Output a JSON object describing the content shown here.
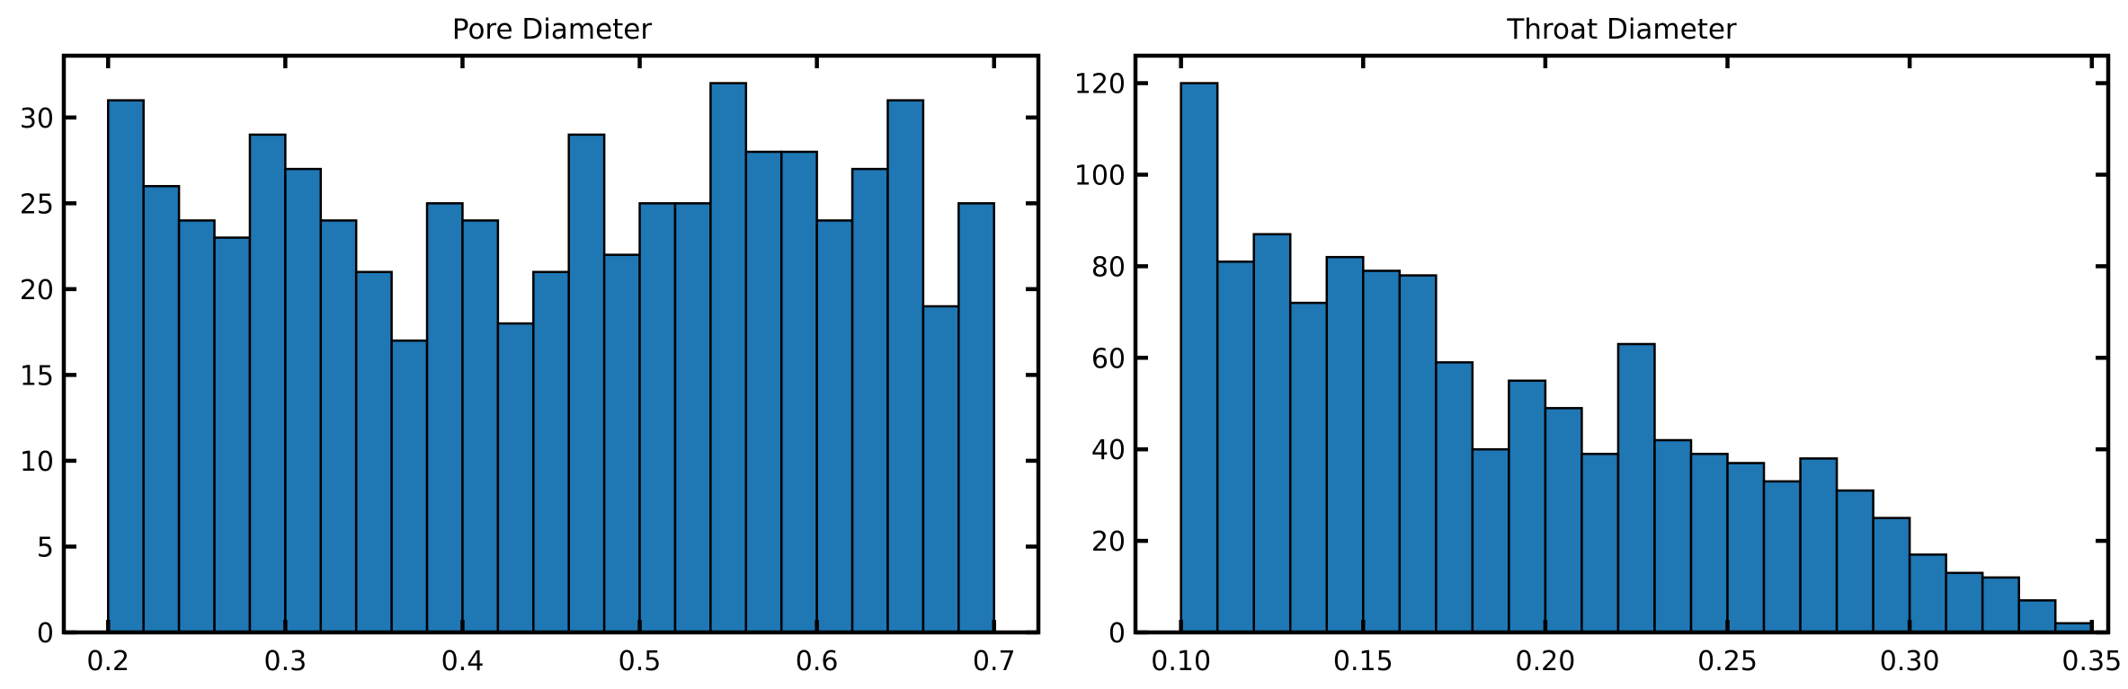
{
  "colors": {
    "bar_fill": "#1f77b4",
    "bar_edge": "#000000",
    "axes": "#000000",
    "background": "#ffffff"
  },
  "chart_data": [
    {
      "type": "bar",
      "subtype": "histogram",
      "title": "Pore Diameter",
      "xlabel": "",
      "ylabel": "",
      "xlim": [
        0.175,
        0.725
      ],
      "ylim": [
        0,
        33.6
      ],
      "xticks": [
        0.2,
        0.3,
        0.4,
        0.5,
        0.6,
        0.7
      ],
      "xtick_labels": [
        "0.2",
        "0.3",
        "0.4",
        "0.5",
        "0.6",
        "0.7"
      ],
      "yticks": [
        0,
        5,
        10,
        15,
        20,
        25,
        30
      ],
      "ytick_labels": [
        "0",
        "5",
        "10",
        "15",
        "20",
        "25",
        "30"
      ],
      "bin_edges": [
        0.2,
        0.22,
        0.24,
        0.26,
        0.28,
        0.3,
        0.32,
        0.34,
        0.36,
        0.38,
        0.4,
        0.42,
        0.44,
        0.46,
        0.48,
        0.5,
        0.52,
        0.54,
        0.56,
        0.58,
        0.6,
        0.62,
        0.64,
        0.66,
        0.68,
        0.7
      ],
      "values": [
        31,
        26,
        24,
        23,
        29,
        27,
        24,
        21,
        17,
        25,
        24,
        18,
        21,
        29,
        22,
        25,
        25,
        32,
        28,
        28,
        24,
        27,
        31,
        19,
        25
      ],
      "grid": false,
      "legend": "none"
    },
    {
      "type": "bar",
      "subtype": "histogram",
      "title": "Throat Diameter",
      "xlabel": "",
      "ylabel": "",
      "xlim": [
        0.0875,
        0.3545
      ],
      "ylim": [
        0,
        126
      ],
      "xticks": [
        0.1,
        0.15,
        0.2,
        0.25,
        0.3,
        0.35
      ],
      "xtick_labels": [
        "0.10",
        "0.15",
        "0.20",
        "0.25",
        "0.30",
        "0.35"
      ],
      "yticks": [
        0,
        20,
        40,
        60,
        80,
        100,
        120
      ],
      "ytick_labels": [
        "0",
        "20",
        "40",
        "60",
        "80",
        "100",
        "120"
      ],
      "bin_edges": [
        0.1,
        0.11,
        0.12,
        0.13,
        0.14,
        0.15,
        0.16,
        0.17,
        0.18,
        0.19,
        0.2,
        0.21,
        0.22,
        0.23,
        0.24,
        0.25,
        0.26,
        0.27,
        0.28,
        0.29,
        0.3,
        0.31,
        0.32,
        0.33,
        0.34,
        0.35
      ],
      "values": [
        120,
        81,
        87,
        72,
        82,
        79,
        78,
        59,
        40,
        55,
        49,
        39,
        63,
        42,
        39,
        37,
        33,
        38,
        31,
        25,
        17,
        13,
        12,
        7,
        2
      ],
      "grid": false,
      "legend": "none"
    }
  ]
}
